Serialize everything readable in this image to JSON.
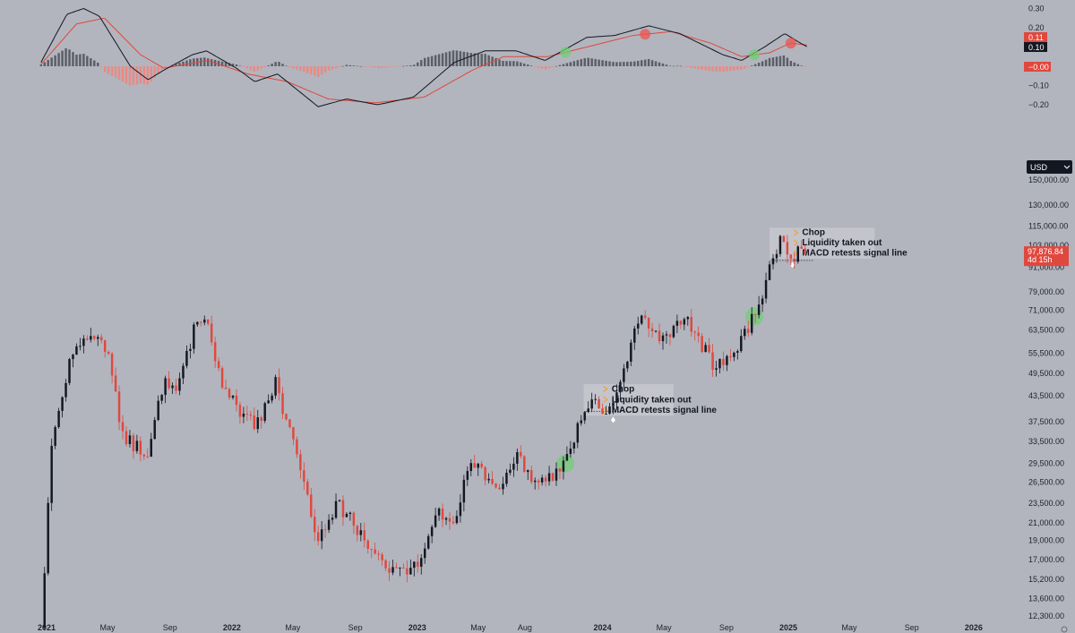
{
  "currency_selector": {
    "label": "USD"
  },
  "colors": {
    "background": "#b2b5be",
    "up": "#131722",
    "down": "#e0483e",
    "macd_line": "#131722",
    "signal_line": "#e0483e",
    "hist_pos": "#5b5e66",
    "hist_neg": "#e88a84",
    "annotation_bg": "#c8cad0",
    "annotation_icon": "#f0a03c",
    "marker_green": "#6fcf73",
    "marker_red": "#ef5350"
  },
  "price_badge": {
    "price": "97,876.84",
    "countdown": "4d 15h"
  },
  "annotations": [
    {
      "items": [
        "Chop",
        "Liquidity taken out",
        "MACD retests signal line"
      ]
    },
    {
      "items": [
        "Chop",
        "Liquidity taken out",
        "MACD retests signal line"
      ]
    }
  ],
  "chart_data": [
    {
      "type": "candlestick",
      "title": "",
      "y_scale": "log",
      "y_ticks": [
        "150,000.00",
        "130,000.00",
        "115,000.00",
        "103,000.00",
        "91,000.00",
        "79,000.00",
        "71,000.00",
        "63,500.00",
        "55,500.00",
        "49,500.00",
        "43,500.00",
        "37,500.00",
        "33,500.00",
        "29,500.00",
        "26,500.00",
        "23,500.00",
        "21,000.00",
        "19,000.00",
        "17,000.00",
        "15,200.00",
        "13,600.00",
        "12,300.00"
      ],
      "x_ticks": [
        {
          "label": "2021",
          "major": true
        },
        {
          "label": "May",
          "major": false
        },
        {
          "label": "Sep",
          "major": false
        },
        {
          "label": "2022",
          "major": true
        },
        {
          "label": "May",
          "major": false
        },
        {
          "label": "Sep",
          "major": false
        },
        {
          "label": "2023",
          "major": true
        },
        {
          "label": "May",
          "major": false
        },
        {
          "label": "Aug",
          "major": false
        },
        {
          "label": "2024",
          "major": true
        },
        {
          "label": "May",
          "major": false
        },
        {
          "label": "Sep",
          "major": false
        },
        {
          "label": "2025",
          "major": true
        },
        {
          "label": "May",
          "major": false
        },
        {
          "label": "Sep",
          "major": false
        },
        {
          "label": "2026",
          "major": true
        }
      ],
      "price_path": [
        [
          "2020-12-21",
          11500
        ],
        [
          "2021-01-10",
          32000
        ],
        [
          "2021-02-20",
          57000
        ],
        [
          "2021-04-12",
          63500
        ],
        [
          "2021-05-12",
          50000
        ],
        [
          "2021-05-25",
          35000
        ],
        [
          "2021-07-20",
          31000
        ],
        [
          "2021-08-20",
          47000
        ],
        [
          "2021-09-12",
          44000
        ],
        [
          "2021-10-20",
          64000
        ],
        [
          "2021-11-10",
          67000
        ],
        [
          "2021-12-05",
          50000
        ],
        [
          "2022-01-20",
          38000
        ],
        [
          "2022-02-24",
          37000
        ],
        [
          "2022-03-28",
          47000
        ],
        [
          "2022-05-10",
          30000
        ],
        [
          "2022-06-18",
          19000
        ],
        [
          "2022-07-30",
          23500
        ],
        [
          "2022-09-15",
          19500
        ],
        [
          "2022-11-08",
          16000
        ],
        [
          "2022-12-31",
          16500
        ],
        [
          "2023-02-10",
          23500
        ],
        [
          "2023-03-10",
          20000
        ],
        [
          "2023-04-14",
          30000
        ],
        [
          "2023-06-15",
          25000
        ],
        [
          "2023-07-15",
          30500
        ],
        [
          "2023-09-01",
          26000
        ],
        [
          "2023-10-20",
          30000
        ],
        [
          "2023-12-05",
          42000
        ],
        [
          "2024-01-22",
          40000
        ],
        [
          "2024-03-14",
          71000
        ],
        [
          "2024-05-01",
          59000
        ],
        [
          "2024-06-08",
          70000
        ],
        [
          "2024-08-05",
          52000
        ],
        [
          "2024-09-06",
          54500
        ],
        [
          "2024-10-25",
          68000
        ],
        [
          "2024-12-16",
          106000
        ],
        [
          "2025-01-09",
          94000
        ],
        [
          "2025-01-22",
          104000
        ],
        [
          "2025-02-08",
          97876.84
        ]
      ],
      "last_price": 97876.84
    },
    {
      "type": "macd",
      "y_ticks": [
        "0.30",
        "0.20",
        "0.10",
        "−0.10",
        "−0.20"
      ],
      "current_values": {
        "signal": "0.11",
        "macd": "0.10",
        "histogram": "−0.00"
      },
      "macd_path": [
        [
          "2020-12-21",
          0.02
        ],
        [
          "2021-02-10",
          0.27
        ],
        [
          "2021-03-15",
          0.3
        ],
        [
          "2021-04-15",
          0.26
        ],
        [
          "2021-06-15",
          0.0
        ],
        [
          "2021-07-20",
          -0.07
        ],
        [
          "2021-08-20",
          -0.02
        ],
        [
          "2021-10-15",
          0.06
        ],
        [
          "2021-11-12",
          0.08
        ],
        [
          "2022-01-10",
          -0.01
        ],
        [
          "2022-02-15",
          -0.08
        ],
        [
          "2022-04-01",
          -0.04
        ],
        [
          "2022-06-20",
          -0.21
        ],
        [
          "2022-08-15",
          -0.17
        ],
        [
          "2022-10-15",
          -0.2
        ],
        [
          "2022-12-25",
          -0.16
        ],
        [
          "2023-03-15",
          0.02
        ],
        [
          "2023-05-15",
          0.08
        ],
        [
          "2023-07-15",
          0.08
        ],
        [
          "2023-09-10",
          0.03
        ],
        [
          "2023-12-01",
          0.15
        ],
        [
          "2024-01-25",
          0.16
        ],
        [
          "2024-04-01",
          0.21
        ],
        [
          "2024-06-01",
          0.17
        ],
        [
          "2024-08-25",
          0.06
        ],
        [
          "2024-10-01",
          0.03
        ],
        [
          "2024-11-15",
          0.1
        ],
        [
          "2024-12-25",
          0.17
        ],
        [
          "2025-01-25",
          0.12
        ],
        [
          "2025-02-08",
          0.1
        ]
      ],
      "signal_path": [
        [
          "2020-12-21",
          0.01
        ],
        [
          "2021-03-01",
          0.22
        ],
        [
          "2021-04-25",
          0.25
        ],
        [
          "2021-07-05",
          0.06
        ],
        [
          "2021-08-20",
          -0.01
        ],
        [
          "2021-11-15",
          0.03
        ],
        [
          "2022-02-01",
          -0.04
        ],
        [
          "2022-04-20",
          -0.08
        ],
        [
          "2022-07-10",
          -0.17
        ],
        [
          "2022-10-10",
          -0.19
        ],
        [
          "2023-01-15",
          -0.16
        ],
        [
          "2023-04-20",
          -0.02
        ],
        [
          "2023-06-20",
          0.05
        ],
        [
          "2023-09-15",
          0.05
        ],
        [
          "2023-12-01",
          0.1
        ],
        [
          "2024-03-01",
          0.16
        ],
        [
          "2024-05-15",
          0.18
        ],
        [
          "2024-08-01",
          0.12
        ],
        [
          "2024-10-01",
          0.05
        ],
        [
          "2024-11-25",
          0.07
        ],
        [
          "2025-01-05",
          0.12
        ],
        [
          "2025-02-08",
          0.11
        ]
      ]
    }
  ]
}
